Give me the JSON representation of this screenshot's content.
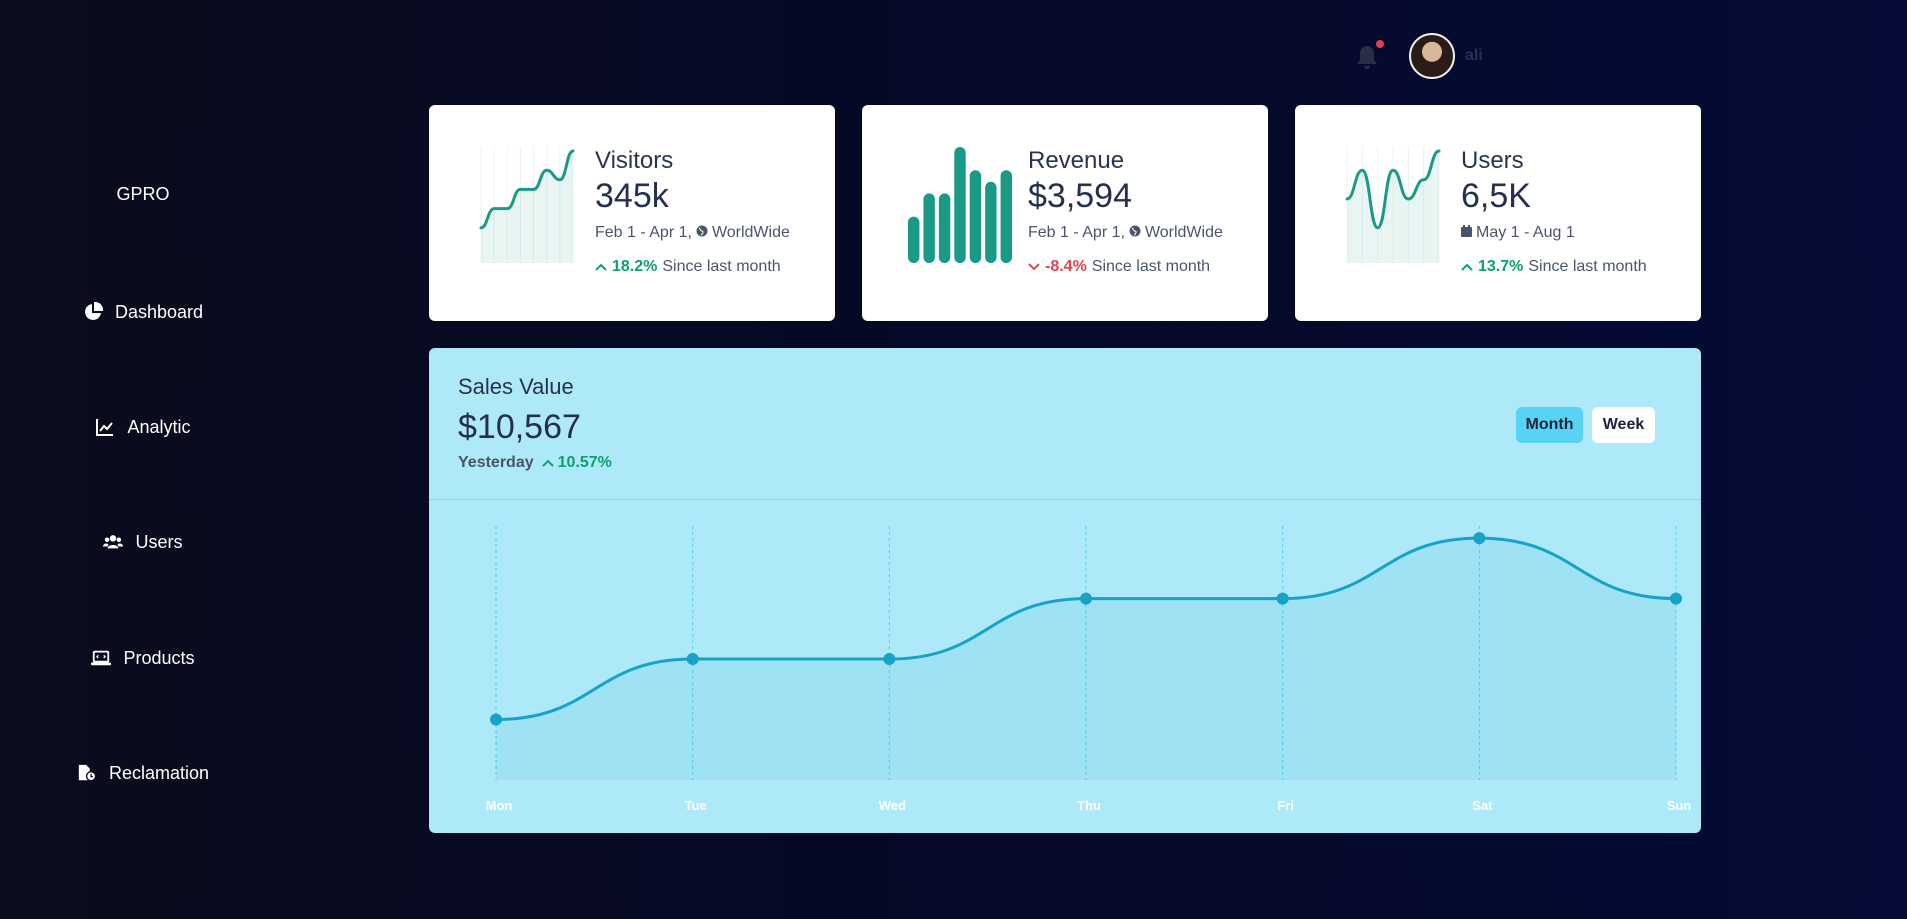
{
  "brand": "GPRO",
  "sidebar": {
    "items": [
      {
        "label": "Dashboard",
        "icon": "pie-chart-icon"
      },
      {
        "label": "Analytic",
        "icon": "line-chart-icon"
      },
      {
        "label": "Users",
        "icon": "users-icon"
      },
      {
        "label": "Products",
        "icon": "laptop-icon"
      },
      {
        "label": "Reclamation",
        "icon": "file-clock-icon"
      }
    ]
  },
  "topbar": {
    "user_name": "ali",
    "has_notification": true
  },
  "cards": [
    {
      "title": "Visitors",
      "value": "345k",
      "meta": "Feb 1 - Apr 1,",
      "meta_region": "WorldWide",
      "trend_pct": "18.2%",
      "trend_dir": "up",
      "trend_text": "Since last month",
      "spark_type": "line",
      "spark_values": [
        2,
        4,
        4,
        6,
        6,
        8,
        7,
        10
      ]
    },
    {
      "title": "Revenue",
      "value": "$3,594",
      "meta": "Feb 1 - Apr 1,",
      "meta_region": "WorldWide",
      "trend_pct": "-8.4%",
      "trend_dir": "down",
      "trend_text": "Since last month",
      "spark_type": "bar",
      "spark_values": [
        4,
        6,
        6,
        10,
        8,
        7,
        8
      ]
    },
    {
      "title": "Users",
      "value": "6,5K",
      "meta": "May 1 - Aug 1",
      "meta_region": "",
      "trend_pct": "13.7%",
      "trend_dir": "up",
      "trend_text": "Since last month",
      "spark_type": "line",
      "spark_values": [
        5,
        8,
        2,
        8,
        5,
        7,
        10
      ]
    }
  ],
  "sales": {
    "title": "Sales Value",
    "value": "$10,567",
    "sub_label": "Yesterday",
    "sub_pct": "10.57%",
    "buttons": {
      "month": "Month",
      "week": "Week"
    },
    "active": "month"
  },
  "chart_data": {
    "type": "area",
    "categories": [
      "Mon",
      "Tue",
      "Wed",
      "Thu",
      "Fri",
      "Sat",
      "Sun"
    ],
    "values": [
      1,
      2,
      2,
      3,
      3,
      4,
      3
    ],
    "ylim": [
      0,
      4.2
    ],
    "grid": "vertical dashed",
    "color": "#18a2c8"
  },
  "colors": {
    "accent_teal": "#1a9a86",
    "accent_blue": "#18a2c8",
    "up": "#10a16b",
    "down": "#e2454f"
  }
}
